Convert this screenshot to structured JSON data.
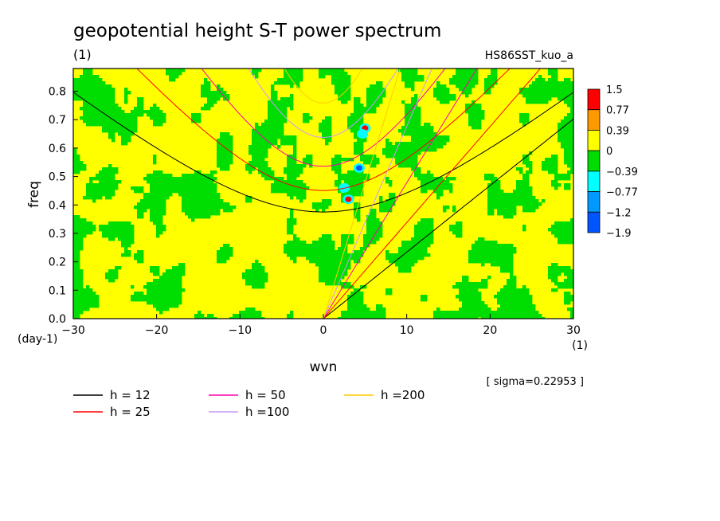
{
  "chart_data": {
    "type": "heatmap",
    "title": "geopotential height S-T power spectrum",
    "subtitle": "(1)",
    "run_label": "HS86SST_kuo_a",
    "xlabel": "wvn",
    "x_unit": "(1)",
    "ylabel": "freq",
    "y_unit": "(day-1)",
    "xlim": [
      -30,
      30
    ],
    "ylim": [
      0,
      0.88
    ],
    "x_ticks": [
      "−30",
      "−20",
      "−10",
      "0",
      "10",
      "20",
      "30"
    ],
    "y_ticks": [
      "0.0",
      "0.1",
      "0.2",
      "0.3",
      "0.4",
      "0.5",
      "0.6",
      "0.7",
      "0.8"
    ],
    "sigma_note": "[ sigma=0.22953 ]",
    "colorbar": {
      "labels": [
        "1.5",
        "0.77",
        "0.39",
        "0",
        "−0.39",
        "−0.77",
        "−1.2",
        "−1.9"
      ],
      "colors": [
        "#ff0000",
        "#ff9900",
        "#ffff00",
        "#00dd00",
        "#00ffff",
        "#0099ff",
        "#0055ff"
      ]
    },
    "dispersion_curves": [
      {
        "name": "h = 12",
        "color": "#000000"
      },
      {
        "name": "h = 25",
        "color": "#ff0000"
      },
      {
        "name": "h = 50",
        "color": "#ff00aa"
      },
      {
        "name": "h =100",
        "color": "#cc99ff"
      },
      {
        "name": "h =200",
        "color": "#ffcc00"
      }
    ],
    "features": [
      {
        "x": 3,
        "y": 0.42,
        "color": "#ff0000"
      },
      {
        "x": 4.3,
        "y": 0.53,
        "color": "#0055ff"
      },
      {
        "x": 5,
        "y": 0.67,
        "color": "#ff0000"
      },
      {
        "x": 4.7,
        "y": 0.65,
        "color": "#00ffff"
      },
      {
        "x": 2.5,
        "y": 0.46,
        "color": "#00ffff"
      }
    ]
  }
}
